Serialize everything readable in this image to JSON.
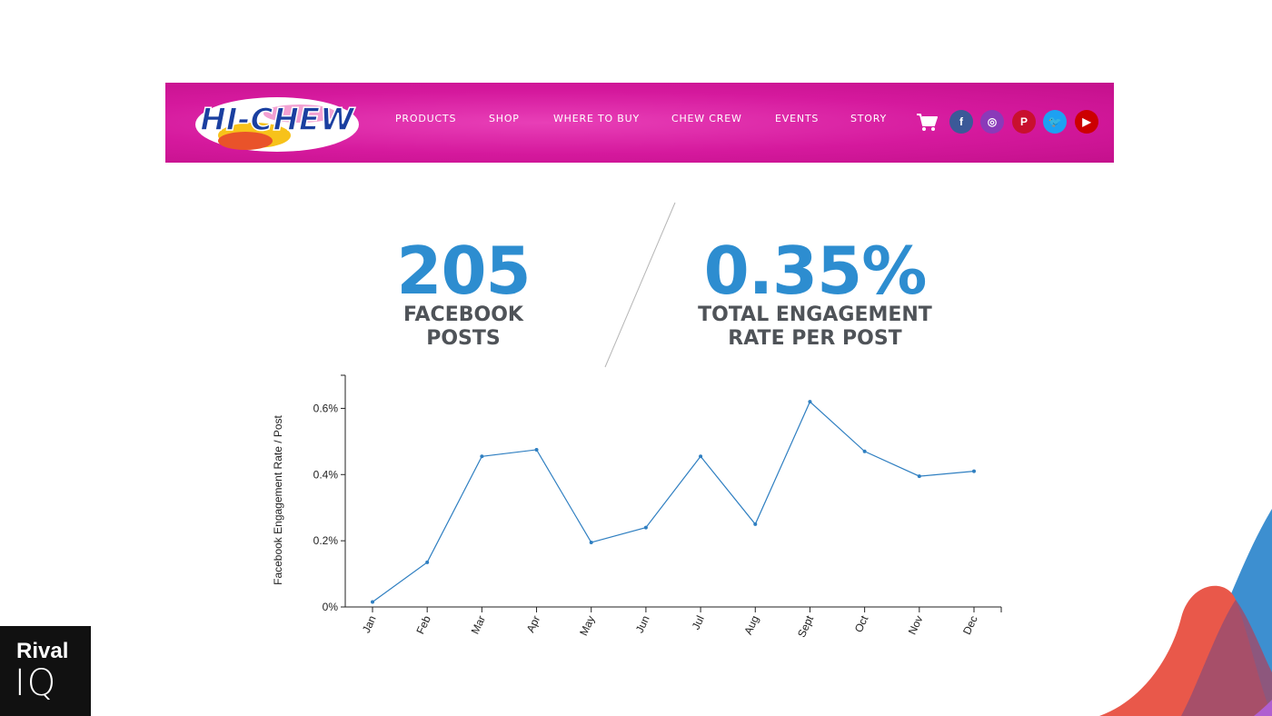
{
  "header": {
    "logo_text": "HI-CHEW",
    "nav": [
      {
        "label": "PRODUCTS"
      },
      {
        "label": "SHOP"
      },
      {
        "label": "WHERE TO BUY"
      },
      {
        "label": "CHEW CREW"
      },
      {
        "label": "EVENTS"
      },
      {
        "label": "STORY"
      }
    ],
    "cart_icon": "shopping-cart-icon",
    "social": [
      {
        "name": "facebook-icon",
        "glyph": "f",
        "color": "#3b5998"
      },
      {
        "name": "instagram-icon",
        "glyph": "◎",
        "color": "#8a3ab9"
      },
      {
        "name": "pinterest-icon",
        "glyph": "P",
        "color": "#c8102e"
      },
      {
        "name": "twitter-icon",
        "glyph": "🐦",
        "color": "#1da1f2"
      },
      {
        "name": "youtube-icon",
        "glyph": "▶",
        "color": "#cc0000"
      }
    ]
  },
  "stats": {
    "posts_value": "205",
    "posts_label": "FACEBOOK\nPOSTS",
    "rate_value": "0.35%",
    "rate_label": "TOTAL ENGAGEMENT\nRATE PER POST"
  },
  "chart_data": {
    "type": "line",
    "ylabel": "Facebook Engagement Rate / Post",
    "xlabel": "",
    "categories": [
      "Jan",
      "Feb",
      "Mar",
      "Apr",
      "May",
      "Jun",
      "Jul",
      "Aug",
      "Sept",
      "Oct",
      "Nov",
      "Dec"
    ],
    "series": [
      {
        "values": [
          0.015,
          0.135,
          0.455,
          0.475,
          0.195,
          0.24,
          0.455,
          0.25,
          0.62,
          0.47,
          0.395,
          0.41
        ]
      }
    ],
    "ylim": [
      0,
      0.7
    ],
    "yticks": [
      0,
      0.2,
      0.4,
      0.6
    ],
    "ytick_labels": [
      "0%",
      "0.2%",
      "0.4%",
      "0.6%"
    ],
    "line_color": "#2f7fc1",
    "grid": false,
    "legend": "none"
  },
  "footer": {
    "brand_line1": "Rival",
    "brand_line2": "IQ"
  }
}
